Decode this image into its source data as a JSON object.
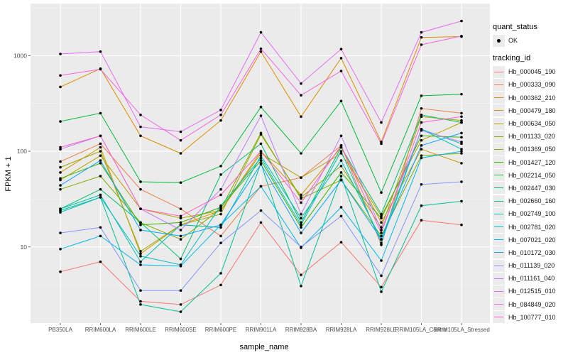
{
  "chart_data": {
    "type": "line",
    "xlabel": "sample_name",
    "ylabel": "FPKM + 1",
    "y_scale": "log10",
    "ylim": [
      1.6,
      3500
    ],
    "y_ticks": [
      10,
      100,
      1000
    ],
    "y_tick_labels": [
      "10",
      "100",
      "1000"
    ],
    "grid": true,
    "legend_position": "right",
    "categories": [
      "PB350LA",
      "RRIM600LA",
      "RRIM600LE",
      "RRIM600SE",
      "RRIM600PE",
      "RRIM901LA",
      "RRIM928BA",
      "RRIM928LA",
      "RRIM928LE",
      "RRIM105LA_Control",
      "RRIM105LA_Stressed"
    ],
    "tick_labels": [
      "PB350LA",
      "RRIM600LA",
      "RRIM600LE",
      "RRIM600SE",
      "RRIM600PE",
      "RRIM901LA",
      "RRIM928BA",
      "RRIM928LA",
      "RRIM928LE",
      "RRIM105LA_Control",
      "RRIM105LA_Stressed"
    ],
    "point_legend": {
      "title": "quant_status",
      "entries": [
        "OK"
      ]
    },
    "line_legend_title": "tracking_id",
    "series": [
      {
        "name": "Hb_000045_190",
        "color": "#F8766D",
        "values": [
          5.5,
          7,
          2.7,
          2.5,
          4,
          18,
          5.1,
          11.2,
          3.8,
          19,
          17
        ]
      },
      {
        "name": "Hb_000333_090",
        "color": "#EF7F47",
        "values": [
          78,
          120,
          40,
          25,
          13,
          43,
          53,
          115,
          10.5,
          280,
          250
        ]
      },
      {
        "name": "Hb_000362_210",
        "color": "#DE8C00",
        "values": [
          470,
          730,
          145,
          95,
          210,
          1100,
          230,
          940,
          125,
          1550,
          1580
        ]
      },
      {
        "name": "Hb_000479_180",
        "color": "#CE9700",
        "values": [
          60,
          110,
          8.5,
          17,
          24,
          100,
          35,
          110,
          18,
          105,
          75
        ]
      },
      {
        "name": "Hb_000634_050",
        "color": "#B79F00",
        "values": [
          50,
          90,
          25,
          20,
          24,
          95,
          53,
          95,
          21,
          130,
          200
        ]
      },
      {
        "name": "Hb_001133_020",
        "color": "#9DA700",
        "values": [
          68,
          100,
          9,
          17,
          22,
          150,
          33,
          70,
          16,
          230,
          210
        ]
      },
      {
        "name": "Hb_001369_050",
        "color": "#7CAE00",
        "values": [
          40,
          55,
          18,
          12,
          25,
          155,
          32,
          50,
          13,
          90,
          95
        ]
      },
      {
        "name": "Hb_001427_120",
        "color": "#39B600",
        "values": [
          52,
          75,
          17,
          18,
          26,
          80,
          16,
          60,
          20,
          145,
          140
        ]
      },
      {
        "name": "Hb_002214_050",
        "color": "#00BA38",
        "values": [
          205,
          250,
          48,
          47,
          70,
          290,
          95,
          335,
          37,
          380,
          395
        ]
      },
      {
        "name": "Hb_002447_030",
        "color": "#00BE6C",
        "values": [
          25,
          40,
          18,
          7.5,
          57,
          120,
          18,
          110,
          22,
          240,
          200
        ]
      },
      {
        "name": "Hb_002660_160",
        "color": "#00BF94",
        "values": [
          24,
          33,
          2.5,
          2.1,
          5.3,
          75,
          3.9,
          55,
          3.4,
          27,
          30
        ]
      },
      {
        "name": "Hb_002749_100",
        "color": "#00C1B0",
        "values": [
          25,
          35,
          7,
          17,
          16,
          90,
          20,
          80,
          12,
          170,
          120
        ]
      },
      {
        "name": "Hb_002781_020",
        "color": "#00BFC4",
        "values": [
          23,
          33,
          8,
          6.5,
          27,
          85,
          17,
          100,
          11,
          170,
          105
        ]
      },
      {
        "name": "Hb_007021_020",
        "color": "#00B6EB",
        "values": [
          9.5,
          13,
          6.5,
          6.3,
          17,
          43,
          9.8,
          26,
          7.2,
          85,
          100
        ]
      },
      {
        "name": "Hb_010172_030",
        "color": "#06A4FF",
        "values": [
          44,
          80,
          15,
          13,
          17,
          73,
          14,
          50,
          12,
          115,
          155
        ]
      },
      {
        "name": "Hb_011139_020",
        "color": "#8494FF",
        "values": [
          14,
          16,
          3.5,
          3.5,
          11,
          24,
          10,
          21,
          5,
          45,
          48
        ]
      },
      {
        "name": "Hb_011161_040",
        "color": "#BF7BFF",
        "values": [
          105,
          145,
          25,
          15,
          40,
          235,
          22,
          145,
          15,
          165,
          125
        ]
      },
      {
        "name": "Hb_012515_010",
        "color": "#E76BF3",
        "values": [
          1040,
          1100,
          180,
          160,
          270,
          1750,
          510,
          1170,
          200,
          1750,
          2300
        ]
      },
      {
        "name": "Hb_084849_020",
        "color": "#F564E3",
        "values": [
          620,
          720,
          240,
          130,
          240,
          1180,
          385,
          690,
          120,
          1300,
          1600
        ]
      },
      {
        "name": "Hb_100777_010",
        "color": "#FF61C3",
        "values": [
          110,
          145,
          25,
          21,
          35,
          100,
          29,
          115,
          14,
          200,
          230
        ]
      }
    ]
  }
}
